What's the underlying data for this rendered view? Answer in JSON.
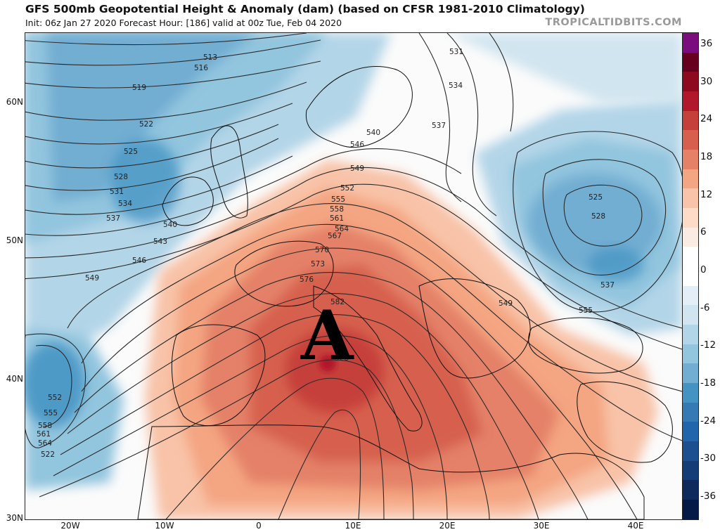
{
  "header": {
    "title": "GFS 500mb Geopotential Height & Anomaly (dam) (based on CFSR 1981-2010 Climatology)",
    "subtitle": "Init: 06z Jan 27 2020   Forecast Hour: [186]   valid at 00z Tue, Feb 04 2020",
    "brand": "TROPICALTIDBITS.COM"
  },
  "map": {
    "lat_labels": [
      "60N",
      "50N",
      "40N",
      "30N"
    ],
    "lon_labels": [
      "20W",
      "10W",
      "0",
      "10E",
      "20E",
      "30E",
      "40E"
    ],
    "high_label": "A",
    "contour_labels": [
      "513",
      "516",
      "519",
      "522",
      "525",
      "528",
      "531",
      "534",
      "537",
      "540",
      "543",
      "546",
      "549",
      "552",
      "555",
      "558",
      "561",
      "564",
      "567",
      "570",
      "573",
      "576",
      "582",
      "528",
      "531",
      "534",
      "537",
      "540",
      "546",
      "549",
      "552",
      "555",
      "558",
      "561",
      "564",
      "522",
      "525",
      "528",
      "537",
      "555",
      "549",
      "552",
      "555",
      "558",
      "561",
      "564"
    ]
  },
  "colorbar": {
    "ticks": [
      "36",
      "30",
      "24",
      "18",
      "12",
      "6",
      "0",
      "-6",
      "-12",
      "-18",
      "-24",
      "-30",
      "-36"
    ],
    "colors": [
      "#7a0c7e",
      "#67001f",
      "#8e0b1f",
      "#b2182b",
      "#c6403b",
      "#d6604d",
      "#e48167",
      "#f4a582",
      "#f8c3a8",
      "#fddbc7",
      "#fbece3",
      "#ffffff",
      "#ffffff",
      "#e4eef6",
      "#d1e5f0",
      "#b3d5e8",
      "#92c5de",
      "#72add2",
      "#4393c3",
      "#3579b5",
      "#2166ac",
      "#1b4f8f",
      "#143d78",
      "#0e2a5c",
      "#061a47"
    ]
  }
}
